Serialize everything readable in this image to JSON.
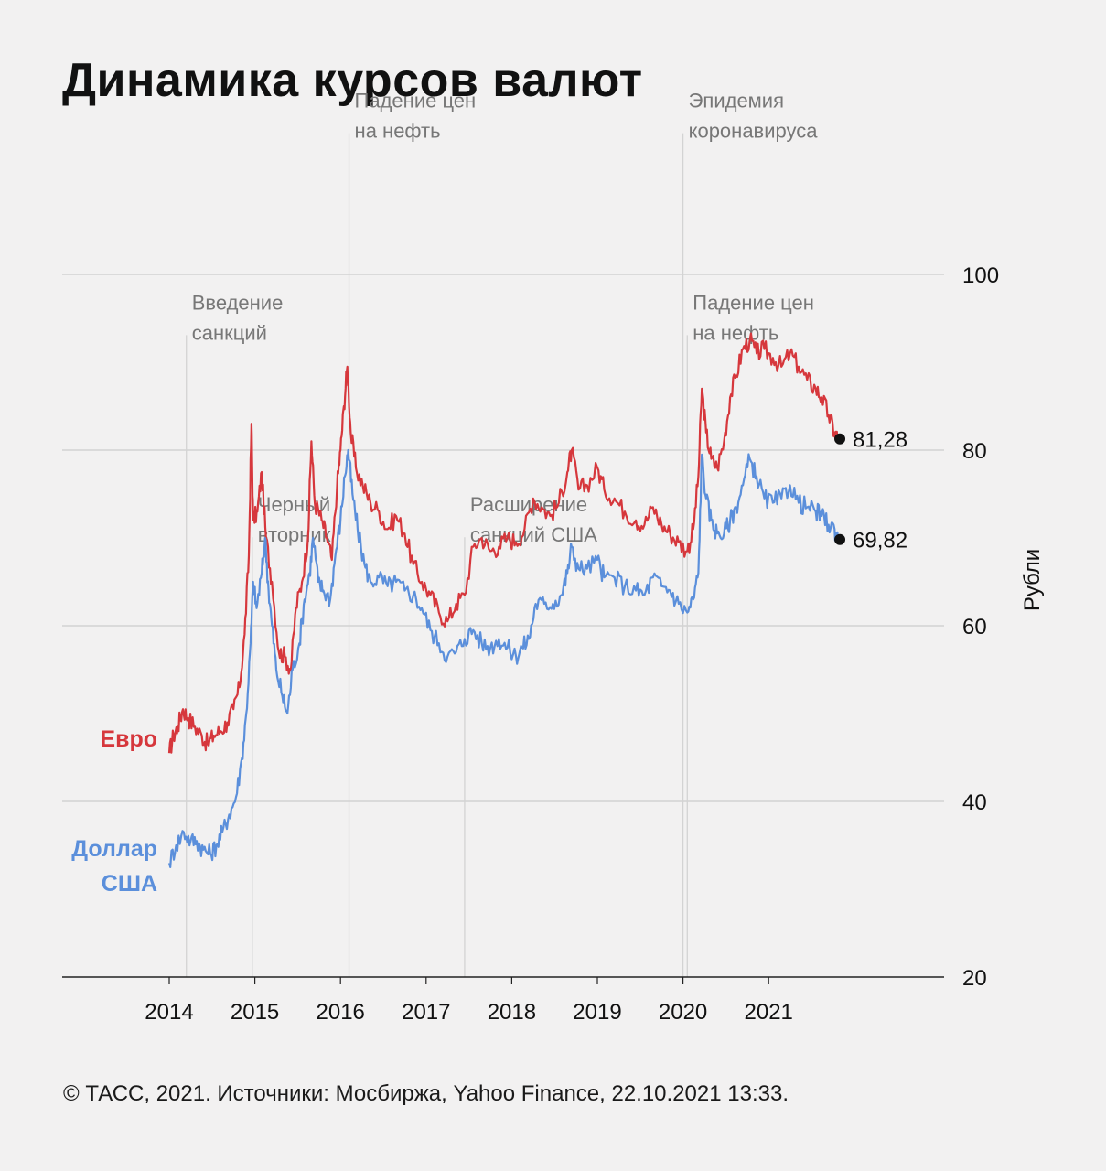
{
  "page": {
    "title": "Динамика курсов валют",
    "source": "© ТАСС, 2021. Источники: Мосбиржа, Yahoo Finance, 22.10.2021 13:33."
  },
  "colors": {
    "euro": "#d6373c",
    "usd": "#5b8fdb",
    "grid": "#cccccc",
    "annotation_line": "#d3d3d3",
    "annotation_text": "#777777",
    "axis": "#222222",
    "background": "#f2f1f1"
  },
  "chart_data": {
    "type": "line",
    "title": "Динамика курсов валют",
    "ylabel": "Рубли",
    "xlabel": "",
    "ylim": [
      20,
      100
    ],
    "xlim": [
      2012.75,
      2023.0
    ],
    "y_ticks": [
      20,
      40,
      60,
      80,
      100
    ],
    "x_ticks": [
      2014,
      2015,
      2016,
      2017,
      2018,
      2019,
      2020,
      2021
    ],
    "x_tick_labels": [
      "2014",
      "2015",
      "2016",
      "2017",
      "2018",
      "2019",
      "2020",
      "2021"
    ],
    "grid": "horizontal",
    "legend": "left, inline labels",
    "series": [
      {
        "name": "Евро",
        "color": "#d6373c",
        "end_label": "81,28",
        "end_value": 81.28,
        "points": [
          [
            2014.0,
            45.5
          ],
          [
            2014.05,
            47.5
          ],
          [
            2014.1,
            48.5
          ],
          [
            2014.16,
            50.5
          ],
          [
            2014.22,
            49.5
          ],
          [
            2014.3,
            48.5
          ],
          [
            2014.38,
            47.5
          ],
          [
            2014.45,
            46.5
          ],
          [
            2014.52,
            47.5
          ],
          [
            2014.6,
            48.0
          ],
          [
            2014.68,
            49.0
          ],
          [
            2014.75,
            50.5
          ],
          [
            2014.82,
            53.0
          ],
          [
            2014.88,
            59.0
          ],
          [
            2014.93,
            68.0
          ],
          [
            2014.96,
            83.0
          ],
          [
            2014.98,
            72.0
          ],
          [
            2015.03,
            73.0
          ],
          [
            2015.08,
            77.5
          ],
          [
            2015.13,
            70.0
          ],
          [
            2015.2,
            65.0
          ],
          [
            2015.28,
            57.0
          ],
          [
            2015.35,
            56.5
          ],
          [
            2015.42,
            55.0
          ],
          [
            2015.48,
            62.0
          ],
          [
            2015.55,
            65.0
          ],
          [
            2015.62,
            70.0
          ],
          [
            2015.66,
            81.0
          ],
          [
            2015.7,
            74.0
          ],
          [
            2015.78,
            72.0
          ],
          [
            2015.84,
            70.0
          ],
          [
            2015.9,
            67.5
          ],
          [
            2015.96,
            76.0
          ],
          [
            2016.0,
            80.0
          ],
          [
            2016.04,
            85.0
          ],
          [
            2016.08,
            89.5
          ],
          [
            2016.12,
            82.0
          ],
          [
            2016.18,
            78.0
          ],
          [
            2016.26,
            76.0
          ],
          [
            2016.35,
            74.0
          ],
          [
            2016.45,
            73.0
          ],
          [
            2016.55,
            71.0
          ],
          [
            2016.65,
            72.5
          ],
          [
            2016.75,
            70.5
          ],
          [
            2016.85,
            67.0
          ],
          [
            2016.95,
            65.0
          ],
          [
            2017.05,
            63.5
          ],
          [
            2017.15,
            61.5
          ],
          [
            2017.25,
            60.5
          ],
          [
            2017.35,
            62.5
          ],
          [
            2017.45,
            63.5
          ],
          [
            2017.55,
            69.0
          ],
          [
            2017.65,
            70.0
          ],
          [
            2017.75,
            68.5
          ],
          [
            2017.85,
            69.0
          ],
          [
            2017.95,
            70.0
          ],
          [
            2018.05,
            69.5
          ],
          [
            2018.15,
            71.0
          ],
          [
            2018.25,
            74.5
          ],
          [
            2018.35,
            73.5
          ],
          [
            2018.45,
            72.5
          ],
          [
            2018.55,
            74.0
          ],
          [
            2018.65,
            77.5
          ],
          [
            2018.7,
            80.0
          ],
          [
            2018.78,
            75.5
          ],
          [
            2018.88,
            76.0
          ],
          [
            2019.0,
            78.0
          ],
          [
            2019.08,
            75.5
          ],
          [
            2019.2,
            74.5
          ],
          [
            2019.32,
            73.0
          ],
          [
            2019.45,
            72.0
          ],
          [
            2019.55,
            71.5
          ],
          [
            2019.65,
            73.5
          ],
          [
            2019.75,
            71.5
          ],
          [
            2019.85,
            70.5
          ],
          [
            2019.95,
            69.5
          ],
          [
            2020.05,
            68.5
          ],
          [
            2020.12,
            71.0
          ],
          [
            2020.18,
            77.0
          ],
          [
            2020.22,
            87.0
          ],
          [
            2020.27,
            82.0
          ],
          [
            2020.33,
            79.0
          ],
          [
            2020.4,
            78.0
          ],
          [
            2020.48,
            81.0
          ],
          [
            2020.55,
            86.0
          ],
          [
            2020.62,
            88.5
          ],
          [
            2020.7,
            91.5
          ],
          [
            2020.78,
            92.5
          ],
          [
            2020.86,
            91.0
          ],
          [
            2020.95,
            91.5
          ],
          [
            2021.05,
            90.5
          ],
          [
            2021.15,
            89.5
          ],
          [
            2021.25,
            91.0
          ],
          [
            2021.35,
            89.5
          ],
          [
            2021.45,
            88.0
          ],
          [
            2021.55,
            87.0
          ],
          [
            2021.62,
            86.0
          ],
          [
            2021.7,
            84.0
          ],
          [
            2021.77,
            82.0
          ],
          [
            2021.81,
            81.28
          ]
        ]
      },
      {
        "name": "Доллар США",
        "color": "#5b8fdb",
        "end_label": "69,82",
        "end_value": 69.82,
        "points": [
          [
            2014.0,
            33.0
          ],
          [
            2014.08,
            35.0
          ],
          [
            2014.17,
            36.5
          ],
          [
            2014.25,
            35.5
          ],
          [
            2014.32,
            35.5
          ],
          [
            2014.4,
            34.5
          ],
          [
            2014.48,
            34.0
          ],
          [
            2014.55,
            35.0
          ],
          [
            2014.62,
            36.5
          ],
          [
            2014.7,
            38.5
          ],
          [
            2014.78,
            40.5
          ],
          [
            2014.85,
            45.0
          ],
          [
            2014.9,
            50.0
          ],
          [
            2014.95,
            58.0
          ],
          [
            2014.98,
            65.0
          ],
          [
            2015.02,
            62.0
          ],
          [
            2015.08,
            66.0
          ],
          [
            2015.12,
            70.0
          ],
          [
            2015.16,
            64.0
          ],
          [
            2015.2,
            60.0
          ],
          [
            2015.25,
            55.0
          ],
          [
            2015.32,
            52.0
          ],
          [
            2015.38,
            50.0
          ],
          [
            2015.44,
            55.0
          ],
          [
            2015.52,
            58.0
          ],
          [
            2015.58,
            63.0
          ],
          [
            2015.64,
            66.0
          ],
          [
            2015.68,
            70.0
          ],
          [
            2015.74,
            65.0
          ],
          [
            2015.8,
            64.0
          ],
          [
            2015.88,
            63.0
          ],
          [
            2015.94,
            68.0
          ],
          [
            2016.0,
            72.0
          ],
          [
            2016.05,
            77.0
          ],
          [
            2016.09,
            80.0
          ],
          [
            2016.14,
            75.0
          ],
          [
            2016.2,
            71.0
          ],
          [
            2016.28,
            67.0
          ],
          [
            2016.35,
            65.0
          ],
          [
            2016.45,
            65.5
          ],
          [
            2016.55,
            64.5
          ],
          [
            2016.65,
            65.0
          ],
          [
            2016.75,
            64.0
          ],
          [
            2016.85,
            63.5
          ],
          [
            2016.95,
            62.0
          ],
          [
            2017.05,
            59.5
          ],
          [
            2017.15,
            58.0
          ],
          [
            2017.25,
            56.5
          ],
          [
            2017.35,
            57.0
          ],
          [
            2017.45,
            58.5
          ],
          [
            2017.55,
            59.5
          ],
          [
            2017.65,
            58.0
          ],
          [
            2017.75,
            57.5
          ],
          [
            2017.85,
            58.5
          ],
          [
            2017.95,
            57.5
          ],
          [
            2018.05,
            56.5
          ],
          [
            2018.12,
            57.5
          ],
          [
            2018.2,
            58.5
          ],
          [
            2018.28,
            62.5
          ],
          [
            2018.38,
            62.5
          ],
          [
            2018.48,
            62.5
          ],
          [
            2018.58,
            63.5
          ],
          [
            2018.65,
            66.0
          ],
          [
            2018.7,
            69.0
          ],
          [
            2018.78,
            66.5
          ],
          [
            2018.88,
            66.5
          ],
          [
            2019.0,
            67.5
          ],
          [
            2019.08,
            65.5
          ],
          [
            2019.2,
            65.5
          ],
          [
            2019.32,
            64.5
          ],
          [
            2019.45,
            64.0
          ],
          [
            2019.55,
            63.5
          ],
          [
            2019.65,
            65.5
          ],
          [
            2019.75,
            64.5
          ],
          [
            2019.85,
            64.0
          ],
          [
            2019.95,
            62.5
          ],
          [
            2020.05,
            61.5
          ],
          [
            2020.12,
            63.0
          ],
          [
            2020.18,
            66.0
          ],
          [
            2020.22,
            79.5
          ],
          [
            2020.27,
            74.5
          ],
          [
            2020.33,
            72.0
          ],
          [
            2020.4,
            70.5
          ],
          [
            2020.48,
            70.5
          ],
          [
            2020.55,
            72.0
          ],
          [
            2020.62,
            73.5
          ],
          [
            2020.7,
            76.0
          ],
          [
            2020.78,
            79.0
          ],
          [
            2020.86,
            77.0
          ],
          [
            2020.95,
            74.5
          ],
          [
            2021.05,
            74.0
          ],
          [
            2021.15,
            74.5
          ],
          [
            2021.25,
            76.0
          ],
          [
            2021.35,
            74.0
          ],
          [
            2021.45,
            73.5
          ],
          [
            2021.55,
            73.0
          ],
          [
            2021.62,
            72.5
          ],
          [
            2021.7,
            71.5
          ],
          [
            2021.77,
            71.0
          ],
          [
            2021.81,
            69.82
          ]
        ]
      }
    ],
    "annotations": [
      {
        "x": 2014.2,
        "lines": [
          "Введение",
          "санкций"
        ],
        "label_y": 91
      },
      {
        "x": 2014.97,
        "lines": [
          "Черный",
          "вторник"
        ],
        "label_y": 68
      },
      {
        "x": 2016.1,
        "lines": [
          "Падение цен",
          "на нефть"
        ],
        "label_y": 114
      },
      {
        "x": 2017.45,
        "lines": [
          "Расширение",
          "санкций США"
        ],
        "label_y": 68
      },
      {
        "x": 2020.0,
        "lines": [
          "Эпидемия",
          "коронавируса"
        ],
        "label_y": 114
      },
      {
        "x": 2020.05,
        "lines": [
          "Падение цен",
          "на нефть"
        ],
        "label_y": 91
      }
    ]
  }
}
